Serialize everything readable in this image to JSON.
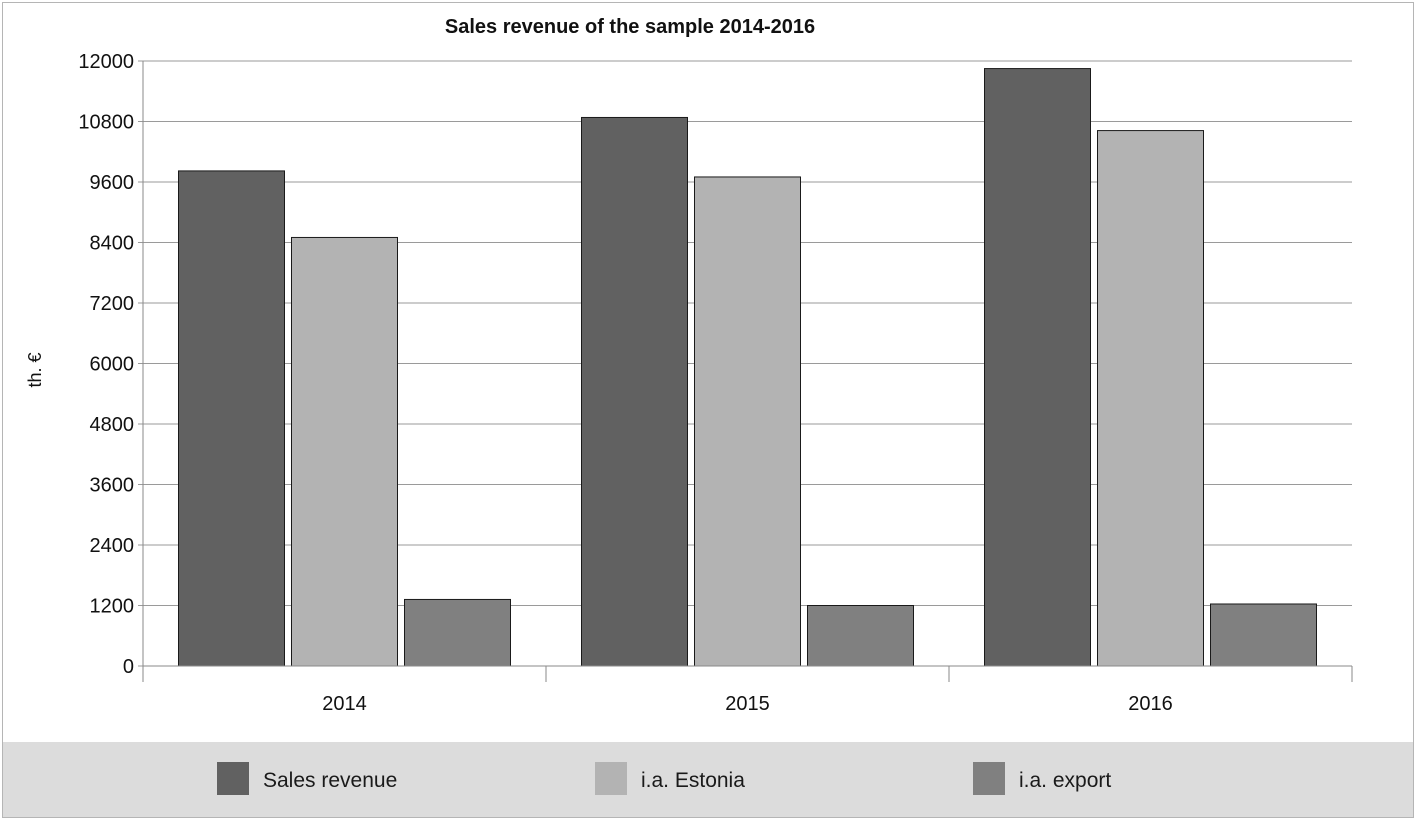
{
  "chart_data": {
    "type": "bar",
    "title": "Sales revenue of the sample 2014-2016",
    "xlabel": "",
    "ylabel": "th. €",
    "categories": [
      "2014",
      "2015",
      "2016"
    ],
    "ylim": [
      0,
      12000
    ],
    "yticks": [
      0,
      1200,
      2400,
      3600,
      4800,
      6000,
      7200,
      8400,
      9600,
      10800,
      12000
    ],
    "grid": true,
    "legend_position": "bottom",
    "series": [
      {
        "name": "Sales revenue",
        "values": [
          9820,
          10880,
          11850
        ],
        "color": "#616161"
      },
      {
        "name": "i.a. Estonia",
        "values": [
          8500,
          9700,
          10620
        ],
        "color": "#b3b3b3"
      },
      {
        "name": "i.a. export",
        "values": [
          1320,
          1200,
          1230
        ],
        "color": "#808080"
      }
    ]
  }
}
